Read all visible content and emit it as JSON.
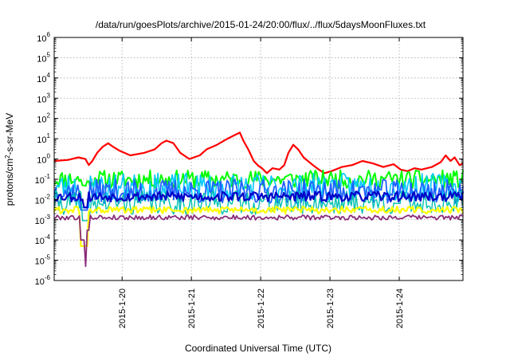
{
  "chart_data": {
    "type": "line",
    "title": "/data/run/goesPlots/archive/2015-01-24/20:00/flux/../flux/5daysMoonFluxes.txt",
    "xlabel": "Coordinated Universal Time (UTC)",
    "ylabel": "protons/cm2-s-sr-MeV",
    "yscale": "log",
    "ylim": [
      1e-06,
      1000000.0
    ],
    "xlim": [
      0,
      5.9
    ],
    "grid": true,
    "y_ticks": [
      {
        "exp": "-6",
        "value": 1e-06
      },
      {
        "exp": "-5",
        "value": 1e-05
      },
      {
        "exp": "-4",
        "value": 0.0001
      },
      {
        "exp": "-3",
        "value": 0.001
      },
      {
        "exp": "-2",
        "value": 0.01
      },
      {
        "exp": "-1",
        "value": 0.1
      },
      {
        "exp": "0",
        "value": 1
      },
      {
        "exp": "1",
        "value": 10
      },
      {
        "exp": "2",
        "value": 100
      },
      {
        "exp": "3",
        "value": 1000
      },
      {
        "exp": "4",
        "value": 10000
      },
      {
        "exp": "5",
        "value": 100000
      },
      {
        "exp": "6",
        "value": 1000000
      }
    ],
    "x_ticks": [
      {
        "label": "2015-1-20",
        "value": 0.98
      },
      {
        "label": "2015-1-21",
        "value": 1.98
      },
      {
        "label": "2015-1-22",
        "value": 2.98
      },
      {
        "label": "2015-1-23",
        "value": 3.98
      },
      {
        "label": "2015-1-24",
        "value": 4.98
      }
    ],
    "series": [
      {
        "color": "#ff0000",
        "width": 2.2,
        "points": [
          [
            0,
            0.8
          ],
          [
            0.2,
            0.9
          ],
          [
            0.35,
            1.2
          ],
          [
            0.45,
            1.0
          ],
          [
            0.5,
            0.5
          ],
          [
            0.55,
            0.8
          ],
          [
            0.62,
            2
          ],
          [
            0.7,
            4
          ],
          [
            0.78,
            6
          ],
          [
            0.85,
            4
          ],
          [
            0.95,
            2.5
          ],
          [
            1.1,
            1.5
          ],
          [
            1.3,
            2
          ],
          [
            1.45,
            3
          ],
          [
            1.55,
            6
          ],
          [
            1.62,
            8
          ],
          [
            1.72,
            6
          ],
          [
            1.82,
            2
          ],
          [
            1.95,
            1
          ],
          [
            2.1,
            1.5
          ],
          [
            2.2,
            3
          ],
          [
            2.35,
            5
          ],
          [
            2.5,
            10
          ],
          [
            2.62,
            16
          ],
          [
            2.68,
            20
          ],
          [
            2.73,
            8
          ],
          [
            2.8,
            3
          ],
          [
            2.88,
            0.8
          ],
          [
            2.95,
            0.45
          ],
          [
            3.0,
            0.35
          ],
          [
            3.07,
            0.2
          ],
          [
            3.15,
            0.35
          ],
          [
            3.25,
            0.3
          ],
          [
            3.32,
            0.5
          ],
          [
            3.38,
            2
          ],
          [
            3.45,
            5
          ],
          [
            3.52,
            3
          ],
          [
            3.6,
            1.2
          ],
          [
            3.68,
            0.7
          ],
          [
            3.75,
            0.45
          ],
          [
            3.82,
            0.3
          ],
          [
            3.9,
            0.2
          ],
          [
            4.0,
            0.25
          ],
          [
            4.15,
            0.4
          ],
          [
            4.3,
            0.5
          ],
          [
            4.45,
            0.8
          ],
          [
            4.6,
            0.6
          ],
          [
            4.75,
            0.4
          ],
          [
            4.9,
            0.55
          ],
          [
            5.0,
            0.3
          ],
          [
            5.1,
            0.25
          ],
          [
            5.2,
            0.35
          ],
          [
            5.3,
            0.3
          ],
          [
            5.45,
            0.4
          ],
          [
            5.58,
            0.7
          ],
          [
            5.65,
            1.5
          ],
          [
            5.72,
            0.8
          ],
          [
            5.78,
            1.2
          ],
          [
            5.85,
            0.5
          ],
          [
            5.9,
            0.6
          ]
        ]
      },
      {
        "color": "#00ff00",
        "width": 2,
        "base": 0.1,
        "noise": 0.45,
        "seed": 11,
        "dips": [
          [
            0.4,
            0.45,
            0.05
          ],
          [
            0.47,
            0.52,
            0.08
          ]
        ]
      },
      {
        "color": "#00c8ff",
        "width": 1.6,
        "base": 0.04,
        "noise": 0.7,
        "seed": 23,
        "dips": [
          [
            0.35,
            0.5,
            0.004
          ]
        ]
      },
      {
        "color": "#2060ff",
        "width": 1.8,
        "base": 0.025,
        "noise": 0.6,
        "seed": 37,
        "dips": [
          [
            0.38,
            0.48,
            0.003
          ]
        ]
      },
      {
        "color": "#00c0b0",
        "width": 1.4,
        "base": 0.007,
        "noise": 0.6,
        "seed": 41,
        "dips": [
          [
            0.4,
            0.5,
            0.0009
          ]
        ]
      },
      {
        "color": "#0000c8",
        "width": 2.2,
        "base": 0.014,
        "noise": 0.25,
        "seed": 53,
        "dips": [
          [
            0.42,
            0.48,
            0.004
          ]
        ]
      },
      {
        "color": "#ffff00",
        "width": 2.2,
        "base": 0.003,
        "noise": 0.18,
        "seed": 61,
        "dips": [
          [
            0.38,
            0.48,
            5e-05
          ]
        ]
      },
      {
        "color": "#8b2c7a",
        "width": 1.8,
        "base": 0.0013,
        "noise": 0.12,
        "seed": 79,
        "dips": [
          [
            0.38,
            0.44,
            0.0001
          ],
          [
            0.44,
            0.47,
            5e-06
          ],
          [
            0.47,
            0.5,
            0.0003
          ]
        ]
      }
    ]
  }
}
